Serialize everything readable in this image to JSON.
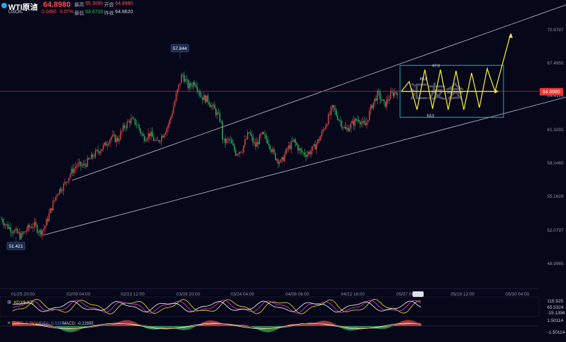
{
  "header": {
    "symbol": "WTI原油",
    "price": "64.8980",
    "code": "USOIL",
    "change": "0.0480",
    "change_pct": "0.07%",
    "high_label": "最高",
    "high": "65.3090",
    "open_label": "开盘",
    "open": "64.8980",
    "low_label": "最低",
    "low": "63.6710",
    "prev_label": "昨收",
    "prev": "64.8620"
  },
  "indicators": {
    "kdj_label": "KDJ(9,3,3)",
    "k_value": "",
    "osc_axis": [
      "115.925",
      "65.5324",
      "-15.1396"
    ],
    "macd_label": "MACD(12,26,9)",
    "dif": "DIFF: 0.08044",
    "dea": "DEA: 0.02974",
    "macd": "MACD: -0.22895",
    "macd_axis": [
      "1.50114",
      "-1.50114"
    ]
  },
  "chart_data": {
    "type": "candlestick",
    "y_ticks": [
      "70.5787",
      "67.4955",
      "64.4124",
      "61.3292",
      "58.2460",
      "55.1629",
      "52.0797",
      "48.9965"
    ],
    "ylim": [
      47.9,
      71.6
    ],
    "x_ticks": [
      "01/25 20:00",
      "02/09 04:00",
      "02/23 12:00",
      "03/09 20:00",
      "03/24 04:00",
      "04/08 08:00",
      "04/22 16:00",
      "05/07 00:00",
      "05/19 12:00",
      "05/30 04:00"
    ],
    "current_price": 64.898,
    "current_price_label": "64.8980",
    "annotations": {
      "high_marker": "57.844",
      "low_marker": "51.421",
      "proj_high": "67.0",
      "proj_mid": "65.8",
      "proj_low": "63.0",
      "watermark": "汇友会"
    },
    "close_path": [
      [
        0,
        53.1
      ],
      [
        6,
        52.4
      ],
      [
        12,
        52.0
      ],
      [
        18,
        51.5
      ],
      [
        24,
        52.2
      ],
      [
        30,
        52.6
      ],
      [
        36,
        51.9
      ],
      [
        40,
        52.3
      ],
      [
        46,
        54.0
      ],
      [
        52,
        55.6
      ],
      [
        58,
        56.2
      ],
      [
        64,
        57.3
      ],
      [
        70,
        58.1
      ],
      [
        76,
        58.0
      ],
      [
        82,
        58.6
      ],
      [
        90,
        59.4
      ],
      [
        96,
        59.9
      ],
      [
        102,
        60.7
      ],
      [
        108,
        60.4
      ],
      [
        114,
        61.6
      ],
      [
        120,
        62.3
      ],
      [
        126,
        61.9
      ],
      [
        132,
        60.6
      ],
      [
        138,
        61.0
      ],
      [
        144,
        60.1
      ],
      [
        150,
        60.9
      ],
      [
        156,
        62.0
      ],
      [
        162,
        64.3
      ],
      [
        168,
        66.5
      ],
      [
        174,
        65.3
      ],
      [
        180,
        65.8
      ],
      [
        186,
        64.4
      ],
      [
        192,
        64.1
      ],
      [
        198,
        63.2
      ],
      [
        204,
        62.2
      ],
      [
        206,
        60.2
      ],
      [
        212,
        60.4
      ],
      [
        218,
        59.2
      ],
      [
        224,
        59.6
      ],
      [
        230,
        61.1
      ],
      [
        236,
        59.8
      ],
      [
        242,
        60.9
      ],
      [
        248,
        60.3
      ],
      [
        254,
        58.9
      ],
      [
        260,
        58.3
      ],
      [
        266,
        59.6
      ],
      [
        272,
        60.3
      ],
      [
        278,
        59.3
      ],
      [
        284,
        59.1
      ],
      [
        290,
        59.6
      ],
      [
        296,
        60.6
      ],
      [
        302,
        62.0
      ],
      [
        308,
        63.4
      ],
      [
        314,
        62.3
      ],
      [
        320,
        61.3
      ],
      [
        326,
        61.9
      ],
      [
        332,
        62.4
      ],
      [
        338,
        61.6
      ],
      [
        344,
        63.5
      ],
      [
        350,
        64.7
      ],
      [
        356,
        63.6
      ],
      [
        362,
        64.6
      ],
      [
        368,
        64.9
      ]
    ],
    "projection": {
      "zigzag": [
        [
          0,
          64.9
        ],
        [
          2,
          65.8
        ],
        [
          4,
          63.2
        ],
        [
          6,
          66.9
        ],
        [
          8,
          63.3
        ],
        [
          10,
          66.9
        ],
        [
          12,
          63.2
        ],
        [
          14,
          66.8
        ],
        [
          16,
          63.2
        ],
        [
          18,
          66.6
        ],
        [
          20,
          63.4
        ],
        [
          22,
          67.0
        ],
        [
          24,
          64.9
        ],
        [
          28,
          70.2
        ]
      ]
    }
  }
}
